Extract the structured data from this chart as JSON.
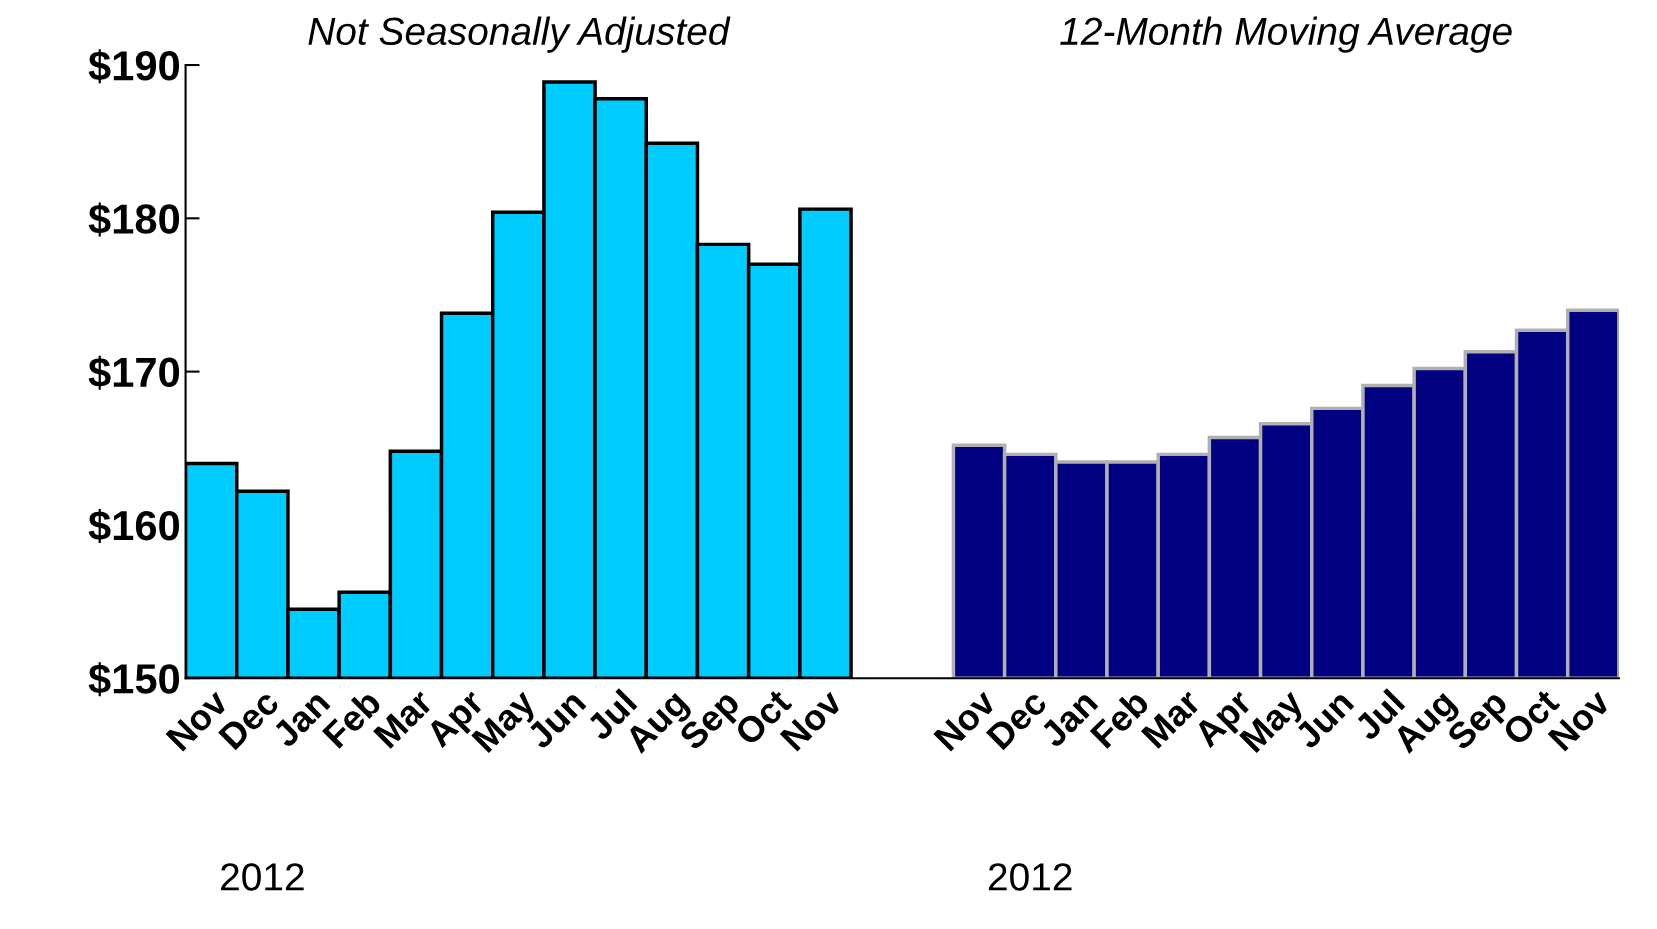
{
  "chart_data": {
    "type": "bar",
    "categories": [
      "Nov",
      "Dec",
      "Jan",
      "Feb",
      "Mar",
      "Apr",
      "May",
      "Jun",
      "Jul",
      "Aug",
      "Sep",
      "Oct",
      "Nov",
      null,
      null,
      "Nov",
      "Dec",
      "Jan",
      "Feb",
      "Mar",
      "Apr",
      "May",
      "Jun",
      "Jul",
      "Aug",
      "Sep",
      "Oct",
      "Nov"
    ],
    "series": [
      {
        "color": "#00ccff",
        "values": [
          164.0,
          162.2,
          154.5,
          155.6,
          164.8,
          173.8,
          180.4,
          188.9,
          187.8,
          184.9,
          178.3,
          177.0,
          180.6,
          null,
          null,
          null,
          null,
          null,
          null,
          null,
          null,
          null,
          null,
          null,
          null,
          null,
          null,
          null
        ]
      },
      {
        "color": "#000080",
        "values": [
          null,
          null,
          null,
          null,
          null,
          null,
          null,
          null,
          null,
          null,
          null,
          null,
          null,
          null,
          null,
          165.2,
          164.6,
          164.1,
          164.1,
          164.6,
          165.7,
          166.6,
          167.6,
          169.1,
          170.2,
          171.3,
          172.7,
          174.0
        ]
      }
    ],
    "ylim": [
      150,
      190
    ],
    "yticks": [
      {
        "value": 150,
        "label": "$150"
      },
      {
        "value": 160,
        "label": "$160"
      },
      {
        "value": 170,
        "label": "$170"
      },
      {
        "value": 180,
        "label": "$180"
      },
      {
        "value": 190,
        "label": "$190"
      }
    ],
    "grid": false,
    "annotations": [
      "Not Seasonally Adjusted",
      "12-Month Moving Average",
      "2012",
      "2012"
    ]
  }
}
